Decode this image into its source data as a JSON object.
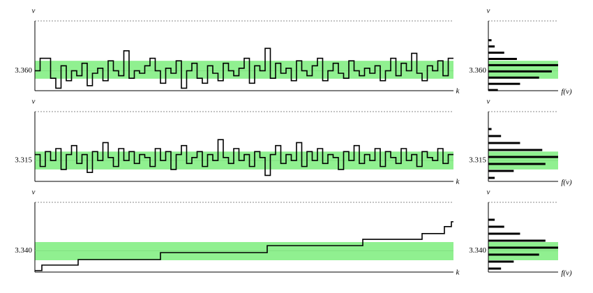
{
  "chart_data": [
    {
      "type": "step",
      "ylabel": "v",
      "xlabel": "k",
      "color": "#000000",
      "band_color": "#90f090",
      "tick_color": "#33cc33",
      "xlim": [
        0,
        80
      ],
      "ylim": [
        3.356,
        3.37
      ],
      "yticks": [
        {
          "value": 3.36,
          "label": "3.360"
        }
      ],
      "band": [
        3.3584,
        3.362
      ],
      "values": [
        3.36,
        3.3625,
        3.3625,
        3.3585,
        3.3565,
        3.361,
        3.358,
        3.36,
        3.359,
        3.3615,
        3.357,
        3.3595,
        3.3605,
        3.358,
        3.362,
        3.36,
        3.359,
        3.364,
        3.3585,
        3.36,
        3.3595,
        3.361,
        3.3625,
        3.36,
        3.3575,
        3.3605,
        3.3595,
        3.362,
        3.3565,
        3.36,
        3.3615,
        3.3585,
        3.3575,
        3.361,
        3.3595,
        3.358,
        3.3615,
        3.36,
        3.359,
        3.3605,
        3.3625,
        3.3575,
        3.361,
        3.36,
        3.3645,
        3.3585,
        3.3615,
        3.3595,
        3.3605,
        3.358,
        3.362,
        3.36,
        3.359,
        3.361,
        3.3625,
        3.358,
        3.36,
        3.3615,
        3.3595,
        3.3585,
        3.362,
        3.36,
        3.359,
        3.3605,
        3.3595,
        3.361,
        3.358,
        3.36,
        3.3625,
        3.359,
        3.3615,
        3.36,
        3.3635,
        3.3595,
        3.358,
        3.361,
        3.36,
        3.362,
        3.359,
        3.3625
      ],
      "hist": {
        "ylabel": "v",
        "xlabel": "f(v)",
        "xlim": [
          0,
          22
        ],
        "bins": [
          3.3555,
          3.35675,
          3.358,
          3.35925,
          3.3605,
          3.36175,
          3.363,
          3.36425,
          3.3655,
          3.36675
        ],
        "counts": [
          3,
          10,
          16,
          20,
          22,
          9,
          5,
          2,
          1
        ]
      }
    },
    {
      "type": "step",
      "ylabel": "v",
      "xlabel": "k",
      "color": "#000000",
      "band_color": "#90f090",
      "tick_color": "#33cc33",
      "xlim": [
        0,
        80
      ],
      "ylim": [
        3.3115,
        3.3232
      ],
      "yticks": [
        {
          "value": 3.315,
          "label": "3.315"
        }
      ],
      "band": [
        3.3135,
        3.3165
      ],
      "values": [
        3.316,
        3.314,
        3.3165,
        3.315,
        3.317,
        3.3135,
        3.316,
        3.3175,
        3.3145,
        3.316,
        3.313,
        3.3165,
        3.315,
        3.318,
        3.3155,
        3.314,
        3.317,
        3.315,
        3.3165,
        3.3145,
        3.316,
        3.3155,
        3.314,
        3.317,
        3.315,
        3.3165,
        3.3135,
        3.316,
        3.3175,
        3.3145,
        3.3155,
        3.3165,
        3.314,
        3.316,
        3.315,
        3.3185,
        3.3155,
        3.3145,
        3.317,
        3.315,
        3.316,
        3.314,
        3.3165,
        3.3155,
        3.3125,
        3.316,
        3.3175,
        3.3145,
        3.316,
        3.315,
        3.318,
        3.314,
        3.3165,
        3.315,
        3.317,
        3.3145,
        3.316,
        3.3155,
        3.3135,
        3.3165,
        3.315,
        3.3175,
        3.3145,
        3.316,
        3.315,
        3.317,
        3.314,
        3.3165,
        3.3155,
        3.3145,
        3.317,
        3.315,
        3.316,
        3.314,
        3.3165,
        3.3155,
        3.315,
        3.317,
        3.3145,
        3.316
      ],
      "hist": {
        "ylabel": "v",
        "xlabel": "f(v)",
        "xlim": [
          0,
          22
        ],
        "bins": [
          3.3115,
          3.31267,
          3.31384,
          3.31501,
          3.31618,
          3.31735,
          3.31852,
          3.31969,
          3.32086,
          3.32203
        ],
        "counts": [
          2,
          8,
          18,
          22,
          17,
          10,
          4,
          1,
          0
        ]
      }
    },
    {
      "type": "step",
      "ylabel": "v",
      "xlabel": "k",
      "color": "#000000",
      "band_color": "#90f090",
      "tick_color": "#33cc33",
      "xlim": [
        0,
        600
      ],
      "ylim": [
        3.33,
        3.363
      ],
      "yticks": [
        {
          "value": 3.34,
          "label": "3.340"
        }
      ],
      "band": [
        3.3356,
        3.3442
      ],
      "x": [
        0,
        10,
        62,
        180,
        333,
        470,
        555,
        587,
        597
      ],
      "values": [
        3.3307,
        3.3333,
        3.3359,
        3.3392,
        3.3425,
        3.3455,
        3.3482,
        3.3515,
        3.3538
      ],
      "hist": {
        "ylabel": "v",
        "xlabel": "f(v)",
        "xlim": [
          0,
          22
        ],
        "bins": [
          3.33,
          3.3333,
          3.3366,
          3.3399,
          3.3432,
          3.3465,
          3.3498,
          3.3531,
          3.3564
        ],
        "counts": [
          4,
          8,
          16,
          22,
          18,
          10,
          5,
          2
        ]
      }
    }
  ]
}
